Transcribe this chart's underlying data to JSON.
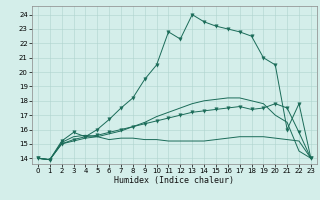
{
  "title": "",
  "xlabel": "Humidex (Indice chaleur)",
  "bg_color": "#d4eeea",
  "line_color": "#1a6b58",
  "grid_color": "#b0d4ce",
  "xlim": [
    -0.5,
    23.5
  ],
  "ylim": [
    13.6,
    24.6
  ],
  "xticks": [
    0,
    1,
    2,
    3,
    4,
    5,
    6,
    7,
    8,
    9,
    10,
    11,
    12,
    13,
    14,
    15,
    16,
    17,
    18,
    19,
    20,
    21,
    22,
    23
  ],
  "yticks": [
    14,
    15,
    16,
    17,
    18,
    19,
    20,
    21,
    22,
    23,
    24
  ],
  "line0_x": [
    0,
    1,
    2,
    3,
    4,
    5,
    6,
    7,
    8,
    9,
    10,
    11,
    12,
    13,
    14,
    15,
    16,
    17,
    18,
    19,
    20,
    21,
    22,
    23
  ],
  "line0_y": [
    14.0,
    13.9,
    15.2,
    15.8,
    15.5,
    16.0,
    16.7,
    17.5,
    18.2,
    19.5,
    20.5,
    22.8,
    22.3,
    24.0,
    23.5,
    23.2,
    23.0,
    22.8,
    22.5,
    21.0,
    20.5,
    16.0,
    17.8,
    14.0
  ],
  "line1_x": [
    0,
    1,
    2,
    3,
    4,
    5,
    6,
    7,
    8,
    9,
    10,
    11,
    12,
    13,
    14,
    15,
    16,
    17,
    18,
    19,
    20,
    21,
    22,
    23
  ],
  "line1_y": [
    14.0,
    13.9,
    15.1,
    15.5,
    15.6,
    15.5,
    15.3,
    15.4,
    15.4,
    15.3,
    15.3,
    15.2,
    15.2,
    15.2,
    15.2,
    15.3,
    15.4,
    15.5,
    15.5,
    15.5,
    15.4,
    15.3,
    15.2,
    14.0
  ],
  "line2_x": [
    0,
    1,
    2,
    3,
    4,
    5,
    6,
    7,
    8,
    9,
    10,
    11,
    12,
    13,
    14,
    15,
    16,
    17,
    18,
    19,
    20,
    21,
    22,
    23
  ],
  "line2_y": [
    14.0,
    13.9,
    15.0,
    15.3,
    15.5,
    15.6,
    15.8,
    16.0,
    16.2,
    16.4,
    16.6,
    16.8,
    17.0,
    17.2,
    17.3,
    17.4,
    17.5,
    17.6,
    17.4,
    17.5,
    17.8,
    17.5,
    15.8,
    14.0
  ],
  "line3_x": [
    0,
    1,
    2,
    3,
    4,
    5,
    6,
    7,
    8,
    9,
    10,
    11,
    12,
    13,
    14,
    15,
    16,
    17,
    18,
    19,
    20,
    21,
    22,
    23
  ],
  "line3_y": [
    14.0,
    13.9,
    15.0,
    15.2,
    15.4,
    15.5,
    15.7,
    15.9,
    16.2,
    16.5,
    16.9,
    17.2,
    17.5,
    17.8,
    18.0,
    18.1,
    18.2,
    18.2,
    18.0,
    17.8,
    17.0,
    16.5,
    14.5,
    14.0
  ]
}
